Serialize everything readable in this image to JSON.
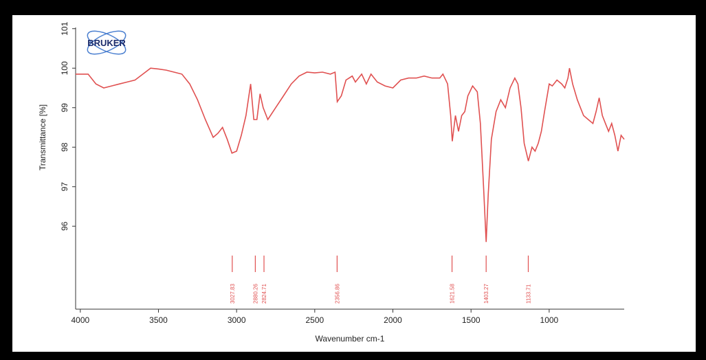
{
  "chart_data": {
    "type": "line",
    "logo": "BRUKER",
    "xlabel": "Wavenumber cm-1",
    "ylabel": "Transmittance [%]",
    "xlim": [
      4030,
      520
    ],
    "ylim": [
      93.9,
      101.03
    ],
    "xticks": [
      4000,
      3500,
      3000,
      2500,
      2000,
      1500,
      1000
    ],
    "yticks": [
      96,
      97,
      98,
      99,
      100,
      101
    ],
    "x": [
      4030,
      3950,
      3900,
      3850,
      3800,
      3750,
      3700,
      3650,
      3600,
      3550,
      3500,
      3450,
      3400,
      3350,
      3300,
      3250,
      3200,
      3150,
      3120,
      3090,
      3060,
      3030,
      3000,
      2970,
      2940,
      2910,
      2890,
      2870,
      2850,
      2830,
      2800,
      2750,
      2700,
      2650,
      2600,
      2550,
      2500,
      2450,
      2400,
      2370,
      2356,
      2330,
      2300,
      2260,
      2240,
      2200,
      2170,
      2140,
      2100,
      2050,
      2000,
      1950,
      1900,
      1850,
      1800,
      1750,
      1700,
      1680,
      1650,
      1630,
      1620,
      1600,
      1580,
      1560,
      1540,
      1520,
      1490,
      1460,
      1440,
      1420,
      1403,
      1390,
      1370,
      1340,
      1310,
      1280,
      1250,
      1220,
      1200,
      1180,
      1160,
      1133,
      1110,
      1090,
      1070,
      1050,
      1030,
      1000,
      980,
      950,
      920,
      900,
      880,
      870,
      850,
      820,
      800,
      780,
      750,
      720,
      700,
      680,
      660,
      640,
      620,
      600,
      580,
      560,
      540,
      520
    ],
    "series": [
      {
        "color": "#e05050",
        "values": [
          99.85,
          99.85,
          99.6,
          99.5,
          99.55,
          99.6,
          99.65,
          99.7,
          99.85,
          100.0,
          99.98,
          99.95,
          99.9,
          99.85,
          99.6,
          99.2,
          98.7,
          98.25,
          98.35,
          98.5,
          98.2,
          97.85,
          97.9,
          98.3,
          98.8,
          99.6,
          98.7,
          98.7,
          99.35,
          99.0,
          98.7,
          99.0,
          99.3,
          99.6,
          99.8,
          99.9,
          99.88,
          99.9,
          99.85,
          99.9,
          99.15,
          99.3,
          99.7,
          99.8,
          99.65,
          99.85,
          99.6,
          99.85,
          99.65,
          99.55,
          99.5,
          99.7,
          99.75,
          99.75,
          99.8,
          99.75,
          99.75,
          99.85,
          99.6,
          98.8,
          98.15,
          98.8,
          98.4,
          98.8,
          98.9,
          99.3,
          99.55,
          99.4,
          98.6,
          97.0,
          95.6,
          96.8,
          98.2,
          98.9,
          99.2,
          99.0,
          99.5,
          99.75,
          99.6,
          99.0,
          98.1,
          97.65,
          98.0,
          97.9,
          98.1,
          98.4,
          98.9,
          99.6,
          99.55,
          99.7,
          99.6,
          99.5,
          99.75,
          100.0,
          99.6,
          99.2,
          99.0,
          98.8,
          98.7,
          98.6,
          98.9,
          99.25,
          98.8,
          98.6,
          98.4,
          98.6,
          98.3,
          97.9,
          98.3,
          98.2
        ]
      }
    ],
    "peaks": [
      3027.83,
      2880.26,
      2824.71,
      2356.86,
      1621.58,
      1403.27,
      1133.71
    ]
  }
}
